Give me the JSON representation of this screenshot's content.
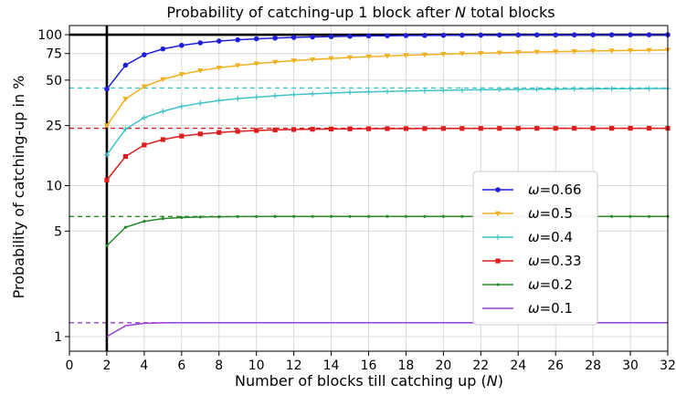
{
  "chart_data": {
    "type": "line",
    "title_prefix": "Probability of catching-up 1 block after ",
    "title_var": "N",
    "title_suffix": " total blocks",
    "xlabel_prefix": "Number of blocks till catching up (",
    "xlabel_var": "N",
    "xlabel_suffix": ")",
    "ylabel": "Probability of catching-up in %",
    "xlim": [
      0,
      32
    ],
    "ylim_log": [
      0.8,
      115
    ],
    "y_scale": "log",
    "grid": true,
    "legend_position": "lower-right",
    "x_ticks": [
      0,
      2,
      4,
      6,
      8,
      10,
      12,
      14,
      16,
      18,
      20,
      22,
      24,
      26,
      28,
      30,
      32
    ],
    "y_ticks": [
      1,
      5,
      10,
      25,
      50,
      75,
      100
    ],
    "reference_lines": {
      "vertical_x": 2,
      "horizontal_y": 100
    },
    "series": [
      {
        "name_prefix": "ω=",
        "name_value": "0.66",
        "color": "#1f1fd6",
        "marker": "circle",
        "asymptote": null,
        "x": [
          2,
          3,
          4,
          5,
          6,
          7,
          8,
          9,
          10,
          11,
          12,
          13,
          14,
          15,
          16,
          17,
          18,
          19,
          20,
          21,
          22,
          23,
          24,
          25,
          26,
          27,
          28,
          29,
          30,
          31,
          32
        ],
        "values": [
          43.6,
          62.8,
          73.6,
          80.5,
          85.0,
          88.3,
          90.7,
          92.5,
          93.9,
          95.0,
          95.9,
          96.6,
          97.2,
          97.7,
          98.1,
          98.4,
          98.7,
          98.9,
          99.1,
          99.25,
          99.4,
          99.5,
          99.6,
          99.65,
          99.7,
          99.75,
          99.8,
          99.85,
          99.88,
          99.9,
          99.92
        ]
      },
      {
        "name_prefix": "ω=",
        "name_value": "0.5",
        "color": "#f0b020",
        "marker": "triangle-down",
        "asymptote": null,
        "x": [
          2,
          3,
          4,
          5,
          6,
          7,
          8,
          9,
          10,
          11,
          12,
          13,
          14,
          15,
          16,
          17,
          18,
          19,
          20,
          21,
          22,
          23,
          24,
          25,
          26,
          27,
          28,
          29,
          30,
          31,
          32
        ],
        "values": [
          25.0,
          37.5,
          45.3,
          50.6,
          54.6,
          57.8,
          60.4,
          62.5,
          64.3,
          65.9,
          67.3,
          68.5,
          69.6,
          70.6,
          71.5,
          72.3,
          73.0,
          73.7,
          74.3,
          74.9,
          75.4,
          75.9,
          76.4,
          76.8,
          77.2,
          77.6,
          78.0,
          78.3,
          78.6,
          78.9,
          79.2
        ]
      },
      {
        "name_prefix": "ω=",
        "name_value": "0.4",
        "color": "#3ec4c8",
        "marker": "plus",
        "asymptote": 44.4,
        "x": [
          2,
          3,
          4,
          5,
          6,
          7,
          8,
          9,
          10,
          11,
          12,
          13,
          14,
          15,
          16,
          17,
          18,
          19,
          20,
          21,
          22,
          23,
          24,
          25,
          26,
          27,
          28,
          29,
          30,
          31,
          32
        ],
        "values": [
          16.0,
          23.7,
          28.2,
          31.1,
          33.5,
          35.2,
          36.6,
          37.7,
          38.6,
          39.4,
          40.1,
          40.6,
          41.1,
          41.5,
          41.8,
          42.1,
          42.4,
          42.6,
          42.8,
          43.0,
          43.2,
          43.3,
          43.4,
          43.5,
          43.6,
          43.7,
          43.8,
          43.85,
          43.9,
          43.95,
          44.0
        ]
      },
      {
        "name_prefix": "ω=",
        "name_value": "0.33",
        "color": "#dd1c1c",
        "marker": "square",
        "asymptote": 24.0,
        "x": [
          2,
          3,
          4,
          5,
          6,
          7,
          8,
          9,
          10,
          11,
          12,
          13,
          14,
          15,
          16,
          17,
          18,
          19,
          20,
          21,
          22,
          23,
          24,
          25,
          26,
          27,
          28,
          29,
          30,
          31,
          32
        ],
        "values": [
          10.9,
          15.6,
          18.6,
          20.2,
          21.3,
          22.0,
          22.5,
          22.9,
          23.2,
          23.4,
          23.55,
          23.65,
          23.72,
          23.78,
          23.82,
          23.86,
          23.88,
          23.9,
          23.92,
          23.93,
          23.94,
          23.95,
          23.96,
          23.97,
          23.97,
          23.98,
          23.98,
          23.98,
          23.99,
          23.99,
          23.99
        ]
      },
      {
        "name_prefix": "ω=",
        "name_value": "0.2",
        "color": "#2a8a2a",
        "marker": "dot",
        "asymptote": 6.25,
        "x": [
          2,
          3,
          4,
          5,
          6,
          7,
          8,
          9,
          10,
          11,
          12,
          13,
          14,
          15,
          16,
          17,
          18,
          19,
          20,
          21,
          22,
          23,
          24,
          25,
          26,
          27,
          28,
          29,
          30,
          31,
          32
        ],
        "values": [
          4.0,
          5.3,
          5.8,
          6.05,
          6.15,
          6.2,
          6.22,
          6.24,
          6.245,
          6.25,
          6.25,
          6.25,
          6.25,
          6.25,
          6.25,
          6.25,
          6.25,
          6.25,
          6.25,
          6.25,
          6.25,
          6.25,
          6.25,
          6.25,
          6.25,
          6.25,
          6.25,
          6.25,
          6.25,
          6.25,
          6.25
        ]
      },
      {
        "name_prefix": "ω=",
        "name_value": "0.1",
        "color": "#9a3fcf",
        "marker": "none",
        "asymptote": 1.235,
        "x": [
          2,
          3,
          4,
          5,
          6,
          7,
          8,
          9,
          10,
          11,
          12,
          13,
          14,
          15,
          16,
          17,
          18,
          19,
          20,
          21,
          22,
          23,
          24,
          25,
          26,
          27,
          28,
          29,
          30,
          31,
          32
        ],
        "values": [
          1.0,
          1.18,
          1.225,
          1.233,
          1.235,
          1.235,
          1.235,
          1.235,
          1.235,
          1.235,
          1.235,
          1.235,
          1.235,
          1.235,
          1.235,
          1.235,
          1.235,
          1.235,
          1.235,
          1.235,
          1.235,
          1.235,
          1.235,
          1.235,
          1.235,
          1.235,
          1.235,
          1.235,
          1.235,
          1.235,
          1.235
        ]
      }
    ]
  }
}
